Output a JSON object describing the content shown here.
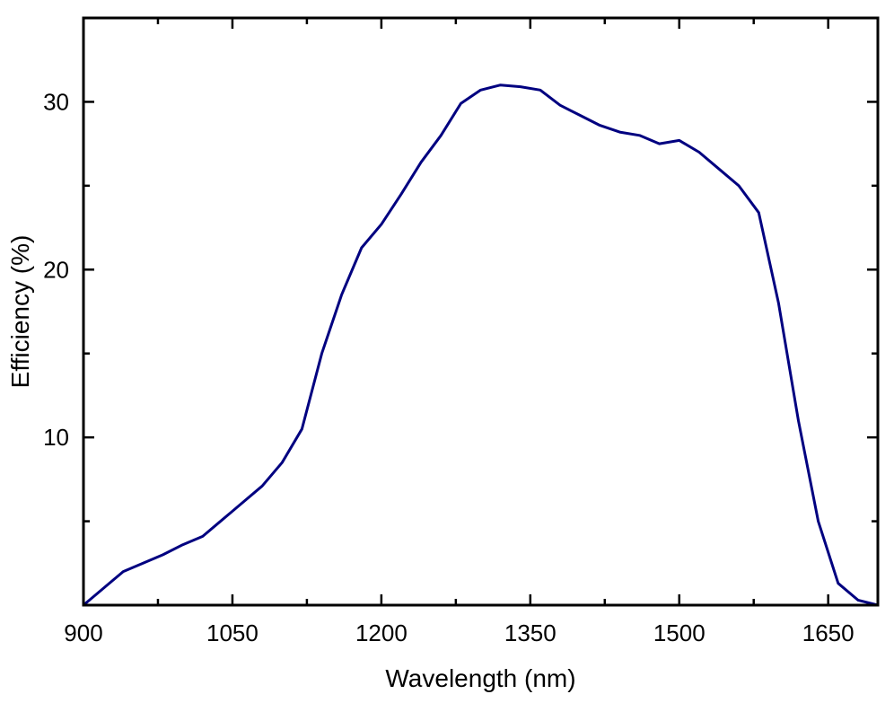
{
  "chart_data": {
    "type": "line",
    "title": "",
    "xlabel": "Wavelength (nm)",
    "ylabel": "Efficiency (%)",
    "xlim": [
      900,
      1700
    ],
    "ylim": [
      0,
      35
    ],
    "xticks": [
      900,
      1050,
      1200,
      1350,
      1500,
      1650
    ],
    "xticks_minor": [
      975,
      1125,
      1275,
      1425,
      1575
    ],
    "yticks": [
      10,
      20,
      30
    ],
    "yticks_minor": [
      5,
      15,
      25
    ],
    "grid": false,
    "line_color": "#000080",
    "series": [
      {
        "name": "",
        "x": [
          900,
          940,
          960,
          980,
          1000,
          1020,
          1040,
          1060,
          1080,
          1100,
          1120,
          1140,
          1160,
          1180,
          1200,
          1220,
          1240,
          1260,
          1280,
          1300,
          1320,
          1340,
          1360,
          1380,
          1400,
          1420,
          1440,
          1460,
          1480,
          1500,
          1520,
          1540,
          1560,
          1580,
          1600,
          1620,
          1640,
          1660,
          1680,
          1700
        ],
        "y": [
          0,
          2.0,
          2.5,
          3.0,
          3.6,
          4.1,
          5.1,
          6.1,
          7.1,
          8.5,
          10.5,
          15.0,
          18.5,
          21.3,
          22.7,
          24.5,
          26.4,
          28.0,
          29.9,
          30.7,
          31.0,
          30.9,
          30.7,
          29.8,
          29.2,
          28.6,
          28.2,
          28.0,
          27.5,
          27.7,
          27.0,
          26.0,
          25.0,
          23.4,
          18.0,
          11.0,
          5.0,
          1.3,
          0.3,
          0
        ]
      }
    ]
  }
}
